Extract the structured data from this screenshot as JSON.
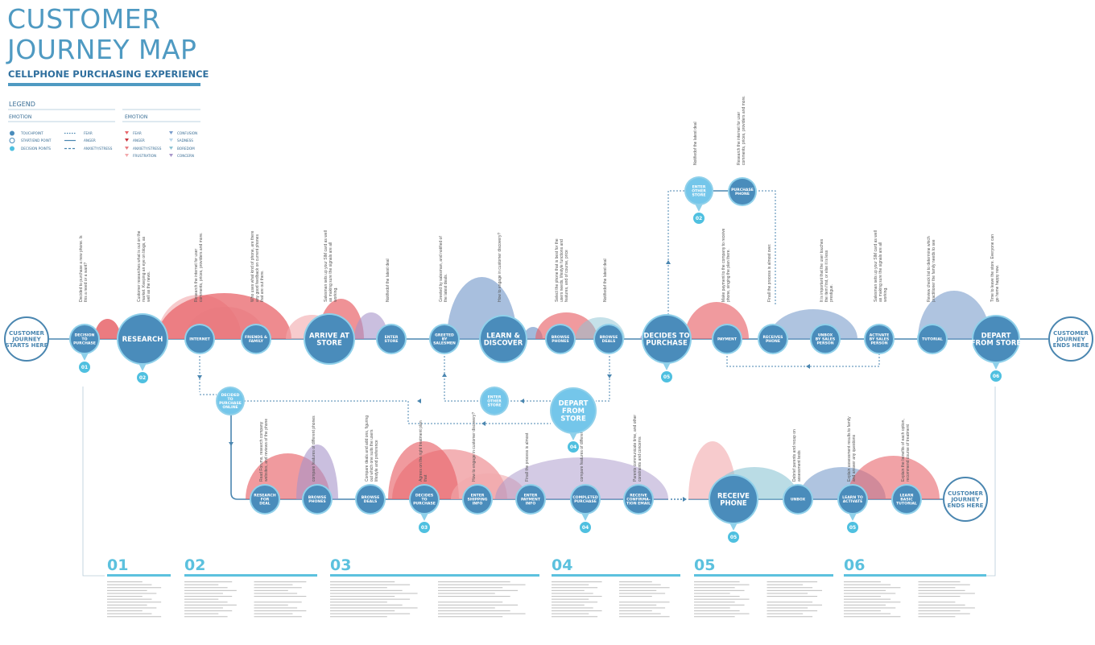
{
  "header": {
    "title_line1": "CUSTOMER",
    "title_line2": "JOURNEY MAP",
    "subtitle": "CELLPHONE PURCHASING EXPERIENCE"
  },
  "colors": {
    "node": "#4a8cbb",
    "node_ring": "#8fd0ea",
    "light_node": "#74c6ea",
    "badge": "#4fc0e0",
    "line": "#4a86b0",
    "fear": "#e8646a",
    "anger": "#c8323c",
    "anxiety": "#e87a80",
    "frustration": "#f2a8ab",
    "confusion": "#7a9ccc",
    "sadness": "#b9d6ea",
    "boredom": "#8cc4d4",
    "concern": "#a795c9"
  },
  "legend": {
    "title": "LEGEND",
    "col1_heading": "EMOTION",
    "col2_heading": "EMOTION",
    "markers": [
      "TOUCHPOINT",
      "START/END POINT",
      "DECISION POINTS"
    ],
    "lines": [
      "FEAR",
      "ANGER",
      "ANXIETY/STRESS"
    ],
    "emotions_a": [
      "FEAR",
      "ANGER",
      "ANXIETY/STRESS",
      "FRUSTRATION"
    ],
    "emotions_b": [
      "CONFUSION",
      "SADNESS",
      "BOREDOM",
      "CONCERN"
    ]
  },
  "top_journey": {
    "start": "CUSTOMER\nJOURNEY\nSTARTS HERE",
    "end": "CUSTOMER\nJOURNEY\nENDS HERE",
    "nodes": [
      {
        "label": "DECISION\nTO\nPURCHASE",
        "badge": "01",
        "note": "Decided to purchase a new phone. Is this a need or a want?"
      },
      {
        "label": "RESEARCH",
        "badge": "02",
        "note": "Customer researches what is out on the market. Keeping an eye on blogs, as well as the news."
      },
      {
        "label": "INTERNET",
        "note": "Research the internet for user comments, prices, providers and more."
      },
      {
        "label": "FRIENDS &\nFAMILY",
        "note": "Who uses what kind of phone, are there any good feedback on current phones that are out there."
      },
      {
        "label": "ARRIVE AT\nSTORE",
        "note": "Salesman sets up your SIM card as well as making sure the signals are all working."
      },
      {
        "label": "ENTER\nSTORE",
        "note": "Notifiedof the latest deal"
      },
      {
        "label": "GREETED\nBY\nSALESMEN",
        "note": "Greeted by salesman, and notified of the latest deals."
      },
      {
        "label": "LEARN &\nDISCOVER",
        "note": "How to engage in customer discovery?"
      },
      {
        "label": "BROWSE\nPHONES",
        "note": "Select the phone that is best for the users needs, lifestyle functions and features, and of course, price"
      },
      {
        "label": "BROWSE\nDEALS",
        "note": "Notifiedof the latest deal"
      },
      {
        "label": "DECIDES TO\nPURCHASE",
        "badge": "05",
        "note": ""
      },
      {
        "label": "PAYMENT",
        "note": "Make payment to the company to receive phone, singing the plan there."
      },
      {
        "label": "RECEIVES\nPHONE",
        "note": "Finall the process is almost over."
      },
      {
        "label": "UNBOX\nBY SALES\nPERSON",
        "note": "It is important that the user touches the item first, or else it is less prestigue."
      },
      {
        "label": "ACTIVATE\nBY SALES\nPERSON",
        "note": "Salesman sets up your SIM card as well as making sure the signals are all working."
      },
      {
        "label": "TUTORIAL",
        "note": "Review check list to determine which practitioner the family needs to see"
      },
      {
        "label": "DEPART\nFROM STORE",
        "badge": "06",
        "note": "Time to leave the store. Everyone can go home happy now."
      }
    ]
  },
  "branch_top": {
    "nodes": [
      {
        "label": "ENTER\nOTHER\nSTORE",
        "badge": "02",
        "note": "Notifiedof the latest deal"
      },
      {
        "label": "PURCHASE\nPHONE",
        "note": "Research the internet for user comments, prices, providers and more."
      }
    ]
  },
  "branch_mid": {
    "nodes": [
      {
        "label": "DECIDED\nTO\nPURCHASE\nONLINE"
      },
      {
        "label": "ENTER\nOTHER\nSTORE"
      },
      {
        "label": "DEPART\nFROM\nSTORE",
        "badge": "04"
      }
    ]
  },
  "bottom_journey": {
    "end": "CUSTOMER\nJOURNEY\nENDS HERE",
    "nodes": [
      {
        "label": "RESEARCH\nFOR\nDEAL",
        "note": "Read Forums, research company websites, and reviews of the phone"
      },
      {
        "label": "BROWSE\nPHONES",
        "note": "compare features of different phones"
      },
      {
        "label": "BROWSE\nDEALS",
        "note": "Compare deals and add ons, figuring out which one suits the users lifestyle and preference"
      },
      {
        "label": "DECIDES\nTO\nPURCHASE",
        "badge": "03",
        "note": "Agrees on the right treatment plan that"
      },
      {
        "label": "ENTER\nSHIPPING\nINFO",
        "note": "How to engage in customer discovery?"
      },
      {
        "label": "ENTER\nPAYMENT\nINFO",
        "note": "Finall the process is almost"
      },
      {
        "label": "COMPLETED\nPURCHASE",
        "badge": "04",
        "note": "compare features of different phones"
      },
      {
        "label": "RECEIVE\nCONFIRMA-\nTION EMAIL",
        "note": "Parents communicate time, and other constraints and concerns"
      },
      {
        "label": "RECEIVE\nPHONE",
        "badge": "05",
        "note": ""
      },
      {
        "label": "UNBOX",
        "note": "Debrief parents and recap on assessment tests"
      },
      {
        "label": "LEARN TO\nACTIVATE",
        "badge": "05",
        "note": "Explain assessment results to family and answer any questions"
      },
      {
        "label": "LEARN\nBASIC\nTUTORIAL",
        "note": "Explain the benefits of each option, recommend course of treatment"
      }
    ]
  },
  "sections": [
    "01",
    "02",
    "03",
    "04",
    "05",
    "06"
  ]
}
